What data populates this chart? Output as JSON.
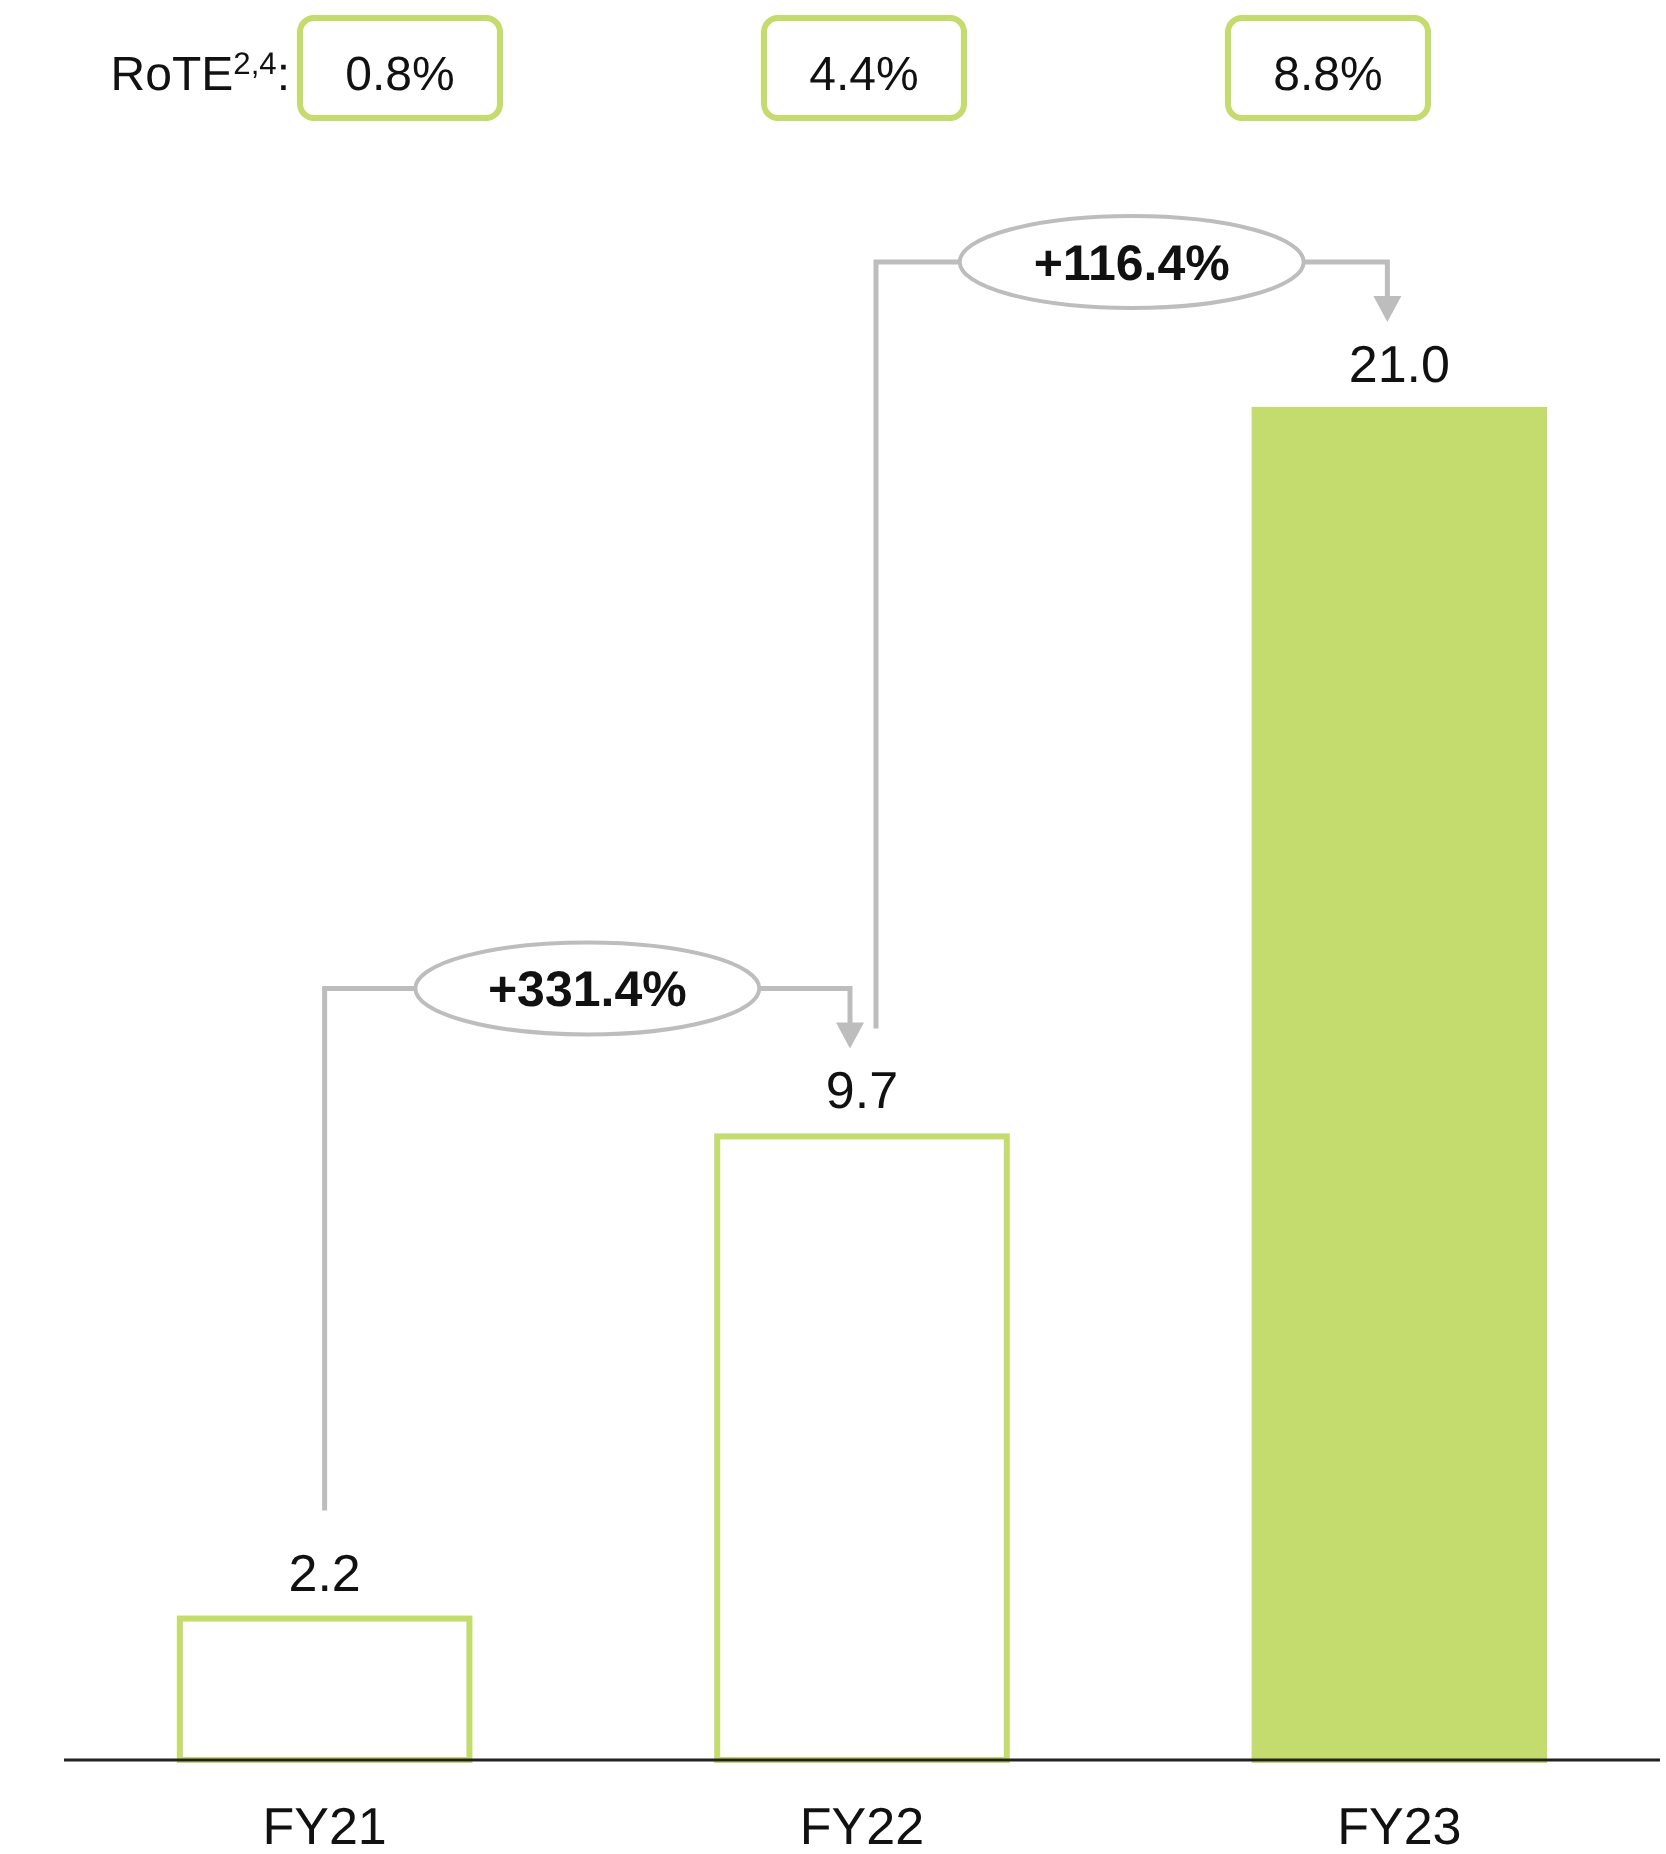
{
  "chart_data": {
    "type": "bar",
    "categories": [
      "FY21",
      "FY22",
      "FY23"
    ],
    "series": [
      {
        "color": "#c4db6e",
        "values": [
          2.2,
          9.7,
          21.0
        ],
        "value_labels": [
          "2.2",
          "9.7",
          "21.0"
        ],
        "colors": [
          "#ffffff",
          "#ffffff",
          "#c4db6e"
        ]
      }
    ],
    "annotations": [
      "RoTE$^{2,4}$:",
      "0.8%",
      "4.4%",
      "8.8%",
      "+331.4%",
      "+116.4%"
    ]
  }
}
